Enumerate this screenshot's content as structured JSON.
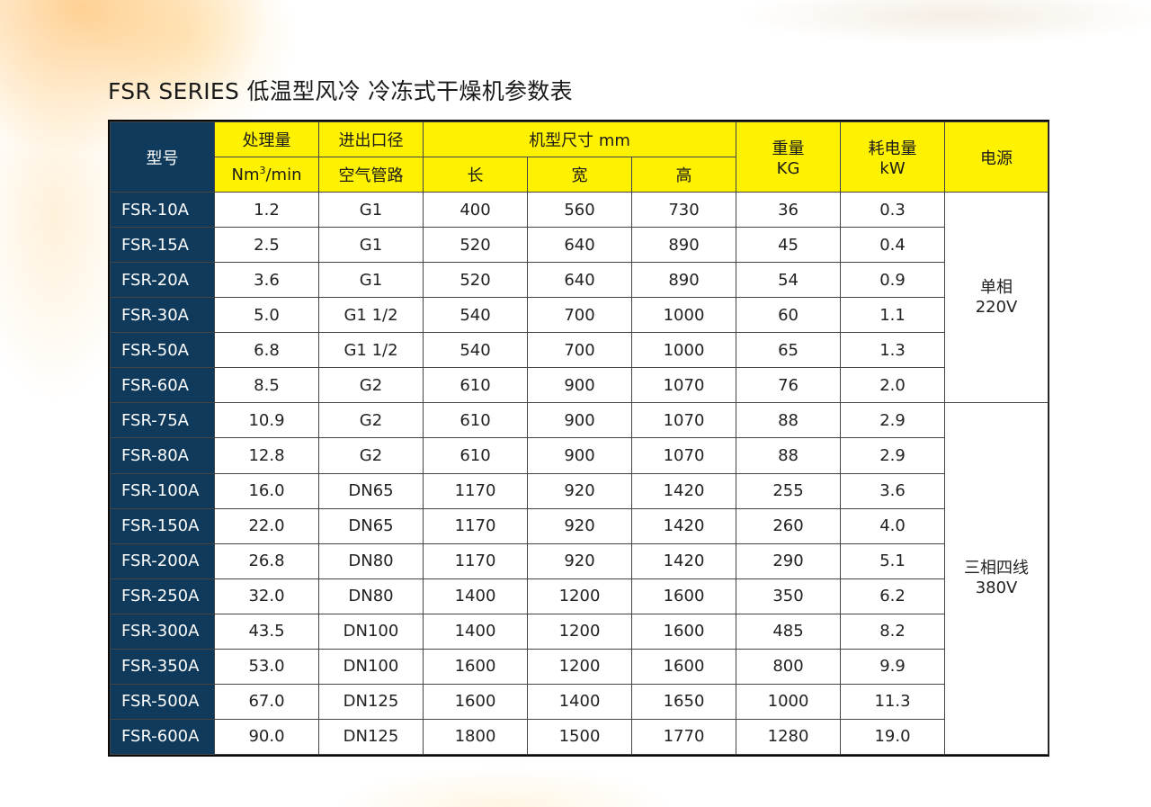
{
  "title": "FSR SERIES 低温型风冷 冷冻式干燥机参数表",
  "header": {
    "model": "型号",
    "capacity": "处理量",
    "capacity_unit_prefix": "Nm",
    "capacity_unit_sup": "3",
    "capacity_unit_suffix": "/min",
    "port": "进出口径",
    "port_sub": "空气管路",
    "dims": "机型尺寸 mm",
    "length": "长",
    "width": "宽",
    "height": "高",
    "weight": "重量",
    "weight_unit": "KG",
    "power_consumption": "耗电量",
    "power_consumption_unit": "kW",
    "supply": "电源"
  },
  "rows": [
    {
      "model": "FSR-10A",
      "capacity": "1.2",
      "port": "G1",
      "length": "400",
      "width": "560",
      "height": "730",
      "weight": "36",
      "kw": "0.3"
    },
    {
      "model": "FSR-15A",
      "capacity": "2.5",
      "port": "G1",
      "length": "520",
      "width": "640",
      "height": "890",
      "weight": "45",
      "kw": "0.4"
    },
    {
      "model": "FSR-20A",
      "capacity": "3.6",
      "port": "G1",
      "length": "520",
      "width": "640",
      "height": "890",
      "weight": "54",
      "kw": "0.9"
    },
    {
      "model": "FSR-30A",
      "capacity": "5.0",
      "port": "G1 1/2",
      "length": "540",
      "width": "700",
      "height": "1000",
      "weight": "60",
      "kw": "1.1"
    },
    {
      "model": "FSR-50A",
      "capacity": "6.8",
      "port": "G1 1/2",
      "length": "540",
      "width": "700",
      "height": "1000",
      "weight": "65",
      "kw": "1.3"
    },
    {
      "model": "FSR-60A",
      "capacity": "8.5",
      "port": "G2",
      "length": "610",
      "width": "900",
      "height": "1070",
      "weight": "76",
      "kw": "2.0"
    },
    {
      "model": "FSR-75A",
      "capacity": "10.9",
      "port": "G2",
      "length": "610",
      "width": "900",
      "height": "1070",
      "weight": "88",
      "kw": "2.9"
    },
    {
      "model": "FSR-80A",
      "capacity": "12.8",
      "port": "G2",
      "length": "610",
      "width": "900",
      "height": "1070",
      "weight": "88",
      "kw": "2.9"
    },
    {
      "model": "FSR-100A",
      "capacity": "16.0",
      "port": "DN65",
      "length": "1170",
      "width": "920",
      "height": "1420",
      "weight": "255",
      "kw": "3.6"
    },
    {
      "model": "FSR-150A",
      "capacity": "22.0",
      "port": "DN65",
      "length": "1170",
      "width": "920",
      "height": "1420",
      "weight": "260",
      "kw": "4.0"
    },
    {
      "model": "FSR-200A",
      "capacity": "26.8",
      "port": "DN80",
      "length": "1170",
      "width": "920",
      "height": "1420",
      "weight": "290",
      "kw": "5.1"
    },
    {
      "model": "FSR-250A",
      "capacity": "32.0",
      "port": "DN80",
      "length": "1400",
      "width": "1200",
      "height": "1600",
      "weight": "350",
      "kw": "6.2"
    },
    {
      "model": "FSR-300A",
      "capacity": "43.5",
      "port": "DN100",
      "length": "1400",
      "width": "1200",
      "height": "1600",
      "weight": "485",
      "kw": "8.2"
    },
    {
      "model": "FSR-350A",
      "capacity": "53.0",
      "port": "DN100",
      "length": "1600",
      "width": "1200",
      "height": "1600",
      "weight": "800",
      "kw": "9.9"
    },
    {
      "model": "FSR-500A",
      "capacity": "67.0",
      "port": "DN125",
      "length": "1600",
      "width": "1400",
      "height": "1650",
      "weight": "1000",
      "kw": "11.3"
    },
    {
      "model": "FSR-600A",
      "capacity": "90.0",
      "port": "DN125",
      "length": "1800",
      "width": "1500",
      "height": "1770",
      "weight": "1280",
      "kw": "19.0"
    }
  ],
  "power_groups": [
    {
      "line1": "单相",
      "line2": "220V"
    },
    {
      "line1": "三相四线",
      "line2": "380V"
    }
  ],
  "colors": {
    "header_yellow": "#fff200",
    "model_navy": "#0f3a5c"
  }
}
